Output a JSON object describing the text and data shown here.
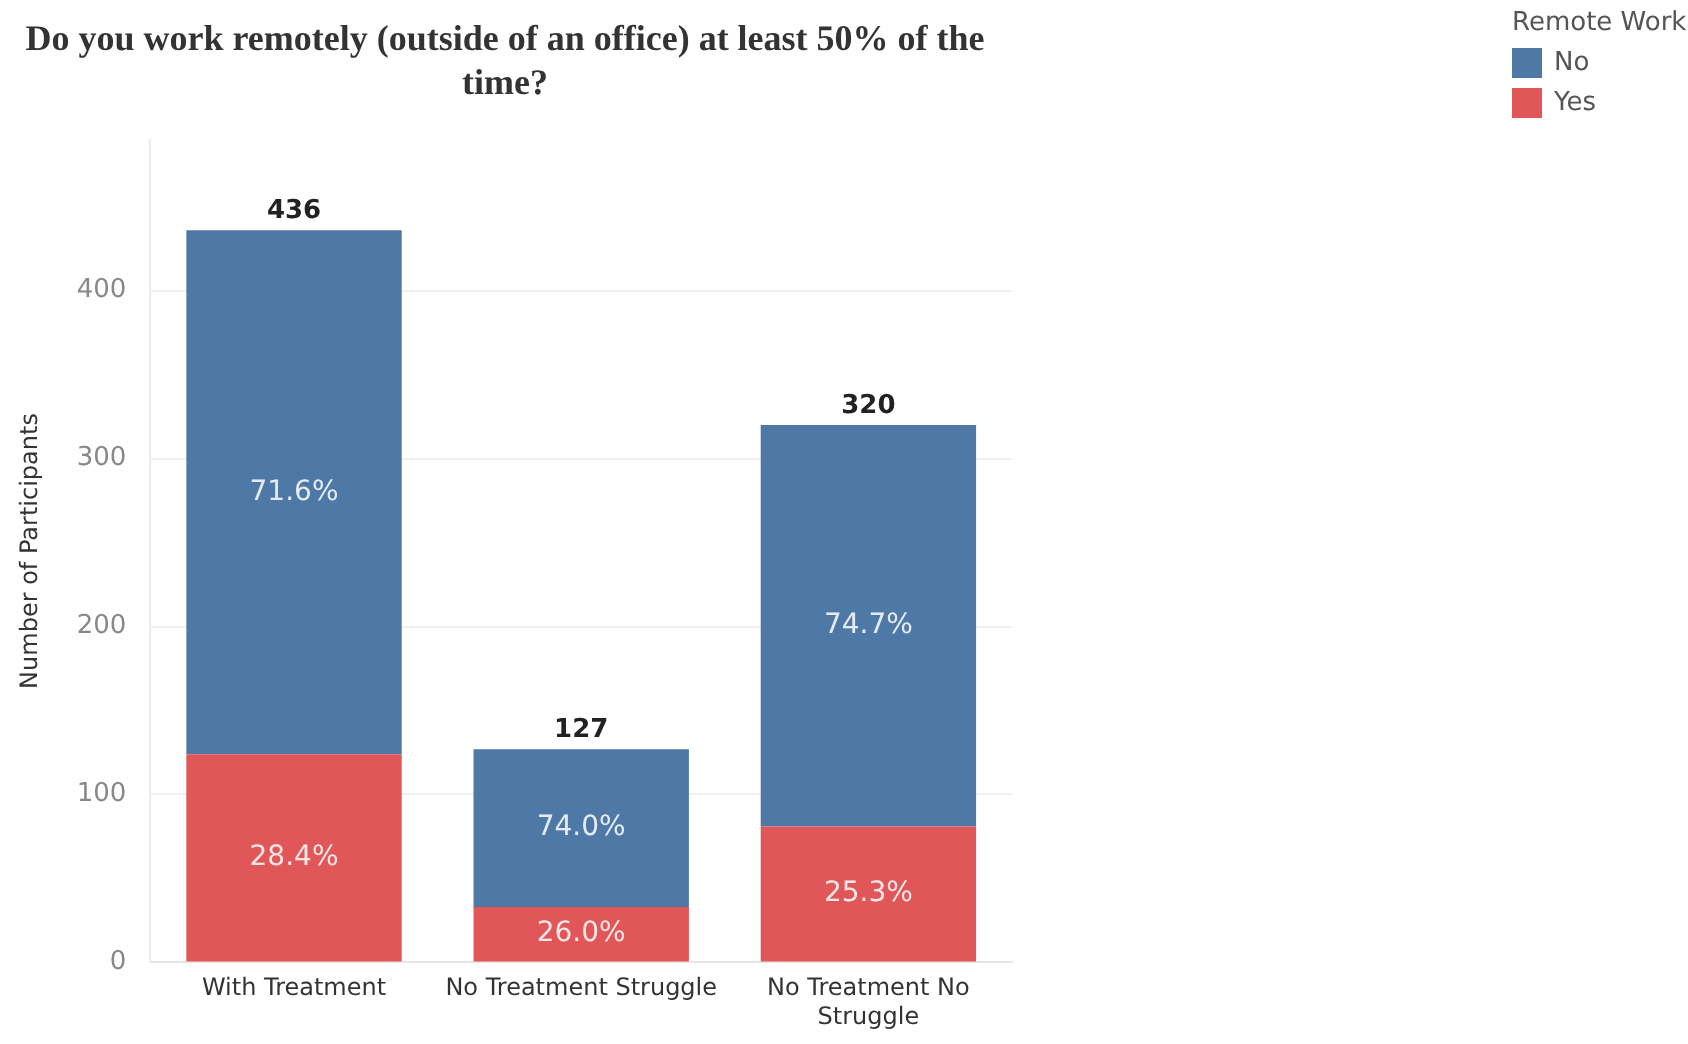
{
  "chart_data": {
    "type": "bar",
    "title": "Do you work remotely (outside of an office) at least 50% of the time?",
    "ylabel": "Number of Participants",
    "legend_title": "Remote Work",
    "categories": [
      "With Treatment",
      "No Treatment Struggle",
      "No Treatment No Struggle"
    ],
    "stacked": true,
    "series": [
      {
        "name": "Yes",
        "color": "#e15759",
        "values": [
          124,
          33,
          81
        ]
      },
      {
        "name": "No",
        "color": "#4e79a7",
        "values": [
          312,
          94,
          239
        ]
      }
    ],
    "annotations": [
      "28.4%",
      "71.6%",
      "26.0%",
      "74.0%",
      "25.3%",
      "74.7%"
    ],
    "totals": [
      "436",
      "127",
      "320"
    ],
    "ylim": [
      0,
      490
    ],
    "yticks": [
      0,
      100,
      200,
      300,
      400
    ],
    "grid": "y",
    "legend": "top right"
  }
}
